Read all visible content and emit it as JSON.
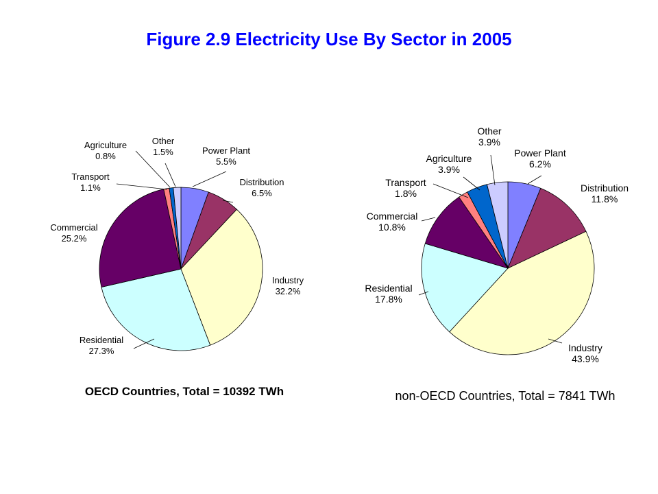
{
  "title": "Figure 2.9 Electricity Use By Sector in 2005",
  "colors": {
    "title": "#0000ff",
    "Power Plant": "#8080ff",
    "Distribution": "#993366",
    "Industry": "#ffffcc",
    "Residential": "#ccffff",
    "Commercial": "#660066",
    "Transport": "#ff8080",
    "Agriculture": "#0066cc",
    "Other": "#ccccff"
  },
  "chart_data": [
    {
      "type": "pie",
      "caption": "OECD Countries, Total = 10392 TWh",
      "slices": [
        {
          "label": "Power Plant",
          "value_text": "5.5%",
          "value": 5.5
        },
        {
          "label": "Distribution",
          "value_text": "6.5%",
          "value": 6.5
        },
        {
          "label": "Industry",
          "value_text": "32.2%",
          "value": 32.2
        },
        {
          "label": "Residential",
          "value_text": "27.3%",
          "value": 27.3
        },
        {
          "label": "Commercial",
          "value_text": "25.2%",
          "value": 25.2
        },
        {
          "label": "Transport",
          "value_text": "1.1%",
          "value": 1.1
        },
        {
          "label": "Agriculture",
          "value_text": "0.8%",
          "value": 0.8
        },
        {
          "label": "Other",
          "value_text": "1.5%",
          "value": 1.5
        }
      ]
    },
    {
      "type": "pie",
      "caption": "non-OECD Countries, Total = 7841 TWh",
      "slices": [
        {
          "label": "Power Plant",
          "value_text": "6.2%",
          "value": 6.2
        },
        {
          "label": "Distribution",
          "value_text": "11.8%",
          "value": 11.8
        },
        {
          "label": "Industry",
          "value_text": "43.9%",
          "value": 43.9
        },
        {
          "label": "Residential",
          "value_text": "17.8%",
          "value": 17.8
        },
        {
          "label": "Commercial",
          "value_text": "10.8%",
          "value": 10.8
        },
        {
          "label": "Transport",
          "value_text": "1.8%",
          "value": 1.8
        },
        {
          "label": "Agriculture",
          "value_text": "3.9%",
          "value": 3.9
        },
        {
          "label": "Other",
          "value_text": "3.9%",
          "value": 3.9
        }
      ]
    }
  ]
}
